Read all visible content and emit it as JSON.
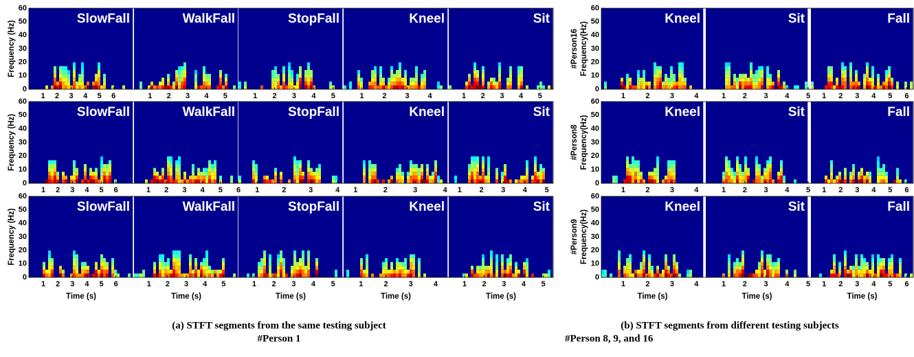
{
  "left": {
    "y_label": "Frequency (Hz)",
    "x_label": "Time (s)",
    "ylim": [
      0,
      60
    ],
    "yticks": [
      0,
      10,
      20,
      30,
      40,
      50,
      60
    ],
    "rows": [
      {
        "panels": [
          {
            "title": "SlowFall",
            "xlim": [
              0,
              7.4
            ],
            "xticks": [
              1,
              2,
              3,
              4,
              5,
              6
            ]
          },
          {
            "title": "WalkFall",
            "xlim": [
              0.15,
              5.7
            ],
            "xticks": [
              1,
              2,
              3,
              4,
              5
            ]
          },
          {
            "title": "StopFall",
            "xlim": [
              0.15,
              5.5
            ],
            "xticks": [
              1,
              2,
              3,
              4,
              5
            ]
          },
          {
            "title": "Kneel",
            "xlim": [
              0.2,
              4.8
            ],
            "xticks": [
              1,
              2,
              3,
              4
            ]
          },
          {
            "title": "Sit",
            "xlim": [
              0.2,
              5.7
            ],
            "xticks": [
              1,
              2,
              3,
              4,
              5
            ]
          }
        ]
      },
      {
        "panels": [
          {
            "title": "SlowFall",
            "xlim": [
              0,
              7.2
            ],
            "xticks": [
              1,
              2,
              3,
              4,
              5,
              6
            ]
          },
          {
            "title": "WalkFall",
            "xlim": [
              0.2,
              6
            ],
            "xticks": [
              1,
              2,
              3,
              4,
              5,
              6
            ]
          },
          {
            "title": "StopFall",
            "xlim": [
              0.3,
              4.2
            ],
            "xticks": [
              1,
              2,
              3,
              4
            ]
          },
          {
            "title": "Kneel",
            "xlim": [
              0.6,
              4.1
            ],
            "xticks": [
              1,
              2,
              3,
              4
            ]
          },
          {
            "title": "Sit",
            "xlim": [
              0.5,
              5.3
            ],
            "xticks": [
              1,
              2,
              3,
              4,
              5
            ]
          }
        ]
      },
      {
        "panels": [
          {
            "title": "SlowFall",
            "xlim": [
              0,
              7.2
            ],
            "xticks": [
              1,
              2,
              3,
              4,
              5,
              6
            ]
          },
          {
            "title": "WalkFall",
            "xlim": [
              0.2,
              5.8
            ],
            "xticks": [
              1,
              2,
              3,
              4,
              5
            ]
          },
          {
            "title": "StopFall",
            "xlim": [
              0.2,
              5.5
            ],
            "xticks": [
              1,
              2,
              3,
              4,
              5
            ]
          },
          {
            "title": "Kneel",
            "xlim": [
              0.3,
              4.5
            ],
            "xticks": [
              1,
              2,
              3,
              4
            ]
          },
          {
            "title": "Sit",
            "xlim": [
              0.2,
              5.5
            ],
            "xticks": [
              1,
              2,
              3,
              4,
              5
            ]
          }
        ]
      }
    ],
    "caption": {
      "line1": "(a) STFT segments from the same testing subject",
      "line2": "#Person 1"
    }
  },
  "right": {
    "y_label": "Frequency(Hz)",
    "x_label": "Time (s)",
    "ylim": [
      0,
      60
    ],
    "yticks": [
      0,
      10,
      20,
      30,
      40,
      50,
      60
    ],
    "rows": [
      {
        "person": "#Person16",
        "panels": [
          {
            "title": "Kneel",
            "xlim": [
              0.1,
              4.3
            ],
            "xticks": [
              1,
              2,
              3,
              4
            ]
          },
          {
            "title": "Sit",
            "xlim": [
              0.15,
              5
            ],
            "xticks": [
              1,
              2,
              3,
              4,
              5
            ]
          },
          {
            "title": "Fall",
            "xlim": [
              0.2,
              6.4
            ],
            "xticks": [
              1,
              2,
              3,
              4,
              5,
              6
            ]
          }
        ]
      },
      {
        "person": "#Person8",
        "panels": [
          {
            "title": "Kneel",
            "xlim": [
              0.1,
              4.3
            ],
            "xticks": [
              1,
              2,
              3,
              4
            ]
          },
          {
            "title": "Sit",
            "xlim": [
              0.15,
              5
            ],
            "xticks": [
              1,
              2,
              3,
              4,
              5
            ]
          },
          {
            "title": "Fall",
            "xlim": [
              0.2,
              6.4
            ],
            "xticks": [
              1,
              2,
              3,
              4,
              5,
              6
            ]
          }
        ]
      },
      {
        "person": "#Person9",
        "panels": [
          {
            "title": "Kneel",
            "xlim": [
              0.1,
              4.3
            ],
            "xticks": [
              1,
              2,
              3,
              4
            ]
          },
          {
            "title": "Sit",
            "xlim": [
              0.15,
              5
            ],
            "xticks": [
              1,
              2,
              3,
              4,
              5
            ]
          },
          {
            "title": "Fall",
            "xlim": [
              0.2,
              6.4
            ],
            "xticks": [
              1,
              2,
              3,
              4,
              5,
              6
            ]
          }
        ]
      }
    ],
    "caption": {
      "line1": "(b) STFT segments from different testing subjects",
      "line2": "#Person 8, 9, and 16"
    }
  }
}
